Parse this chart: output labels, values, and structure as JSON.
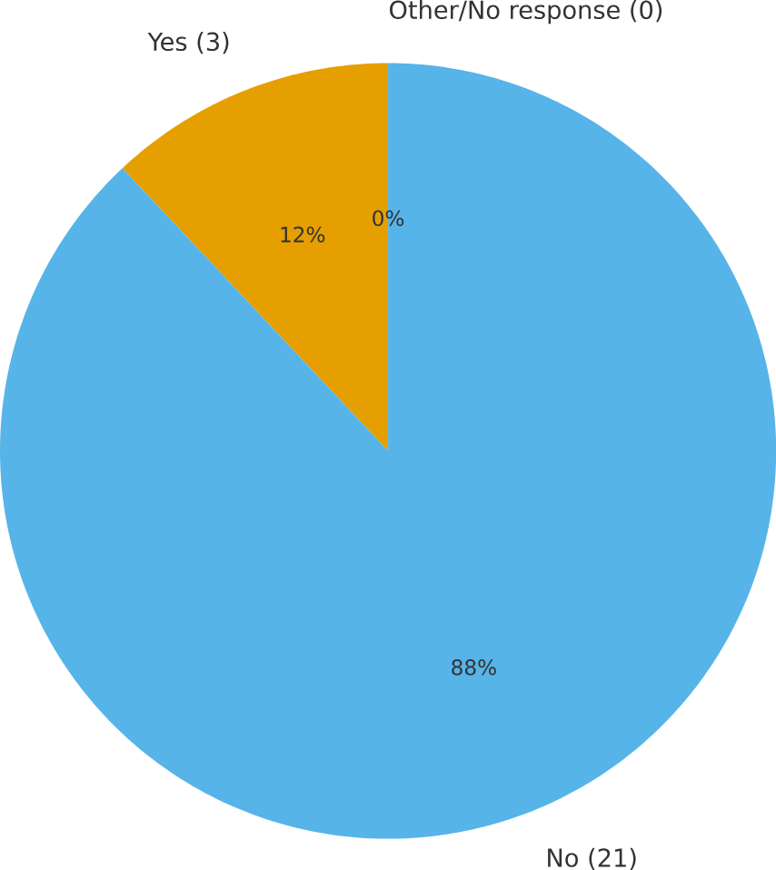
{
  "chart_data": {
    "type": "pie",
    "categories": [
      "Other/No response (0)",
      "Yes (3)",
      "No (21)"
    ],
    "values": [
      0,
      12,
      88
    ],
    "colors": [
      "#999999",
      "#e69f00",
      "#56b4e9"
    ],
    "value_labels": [
      "0%",
      "12%",
      "88%"
    ]
  }
}
